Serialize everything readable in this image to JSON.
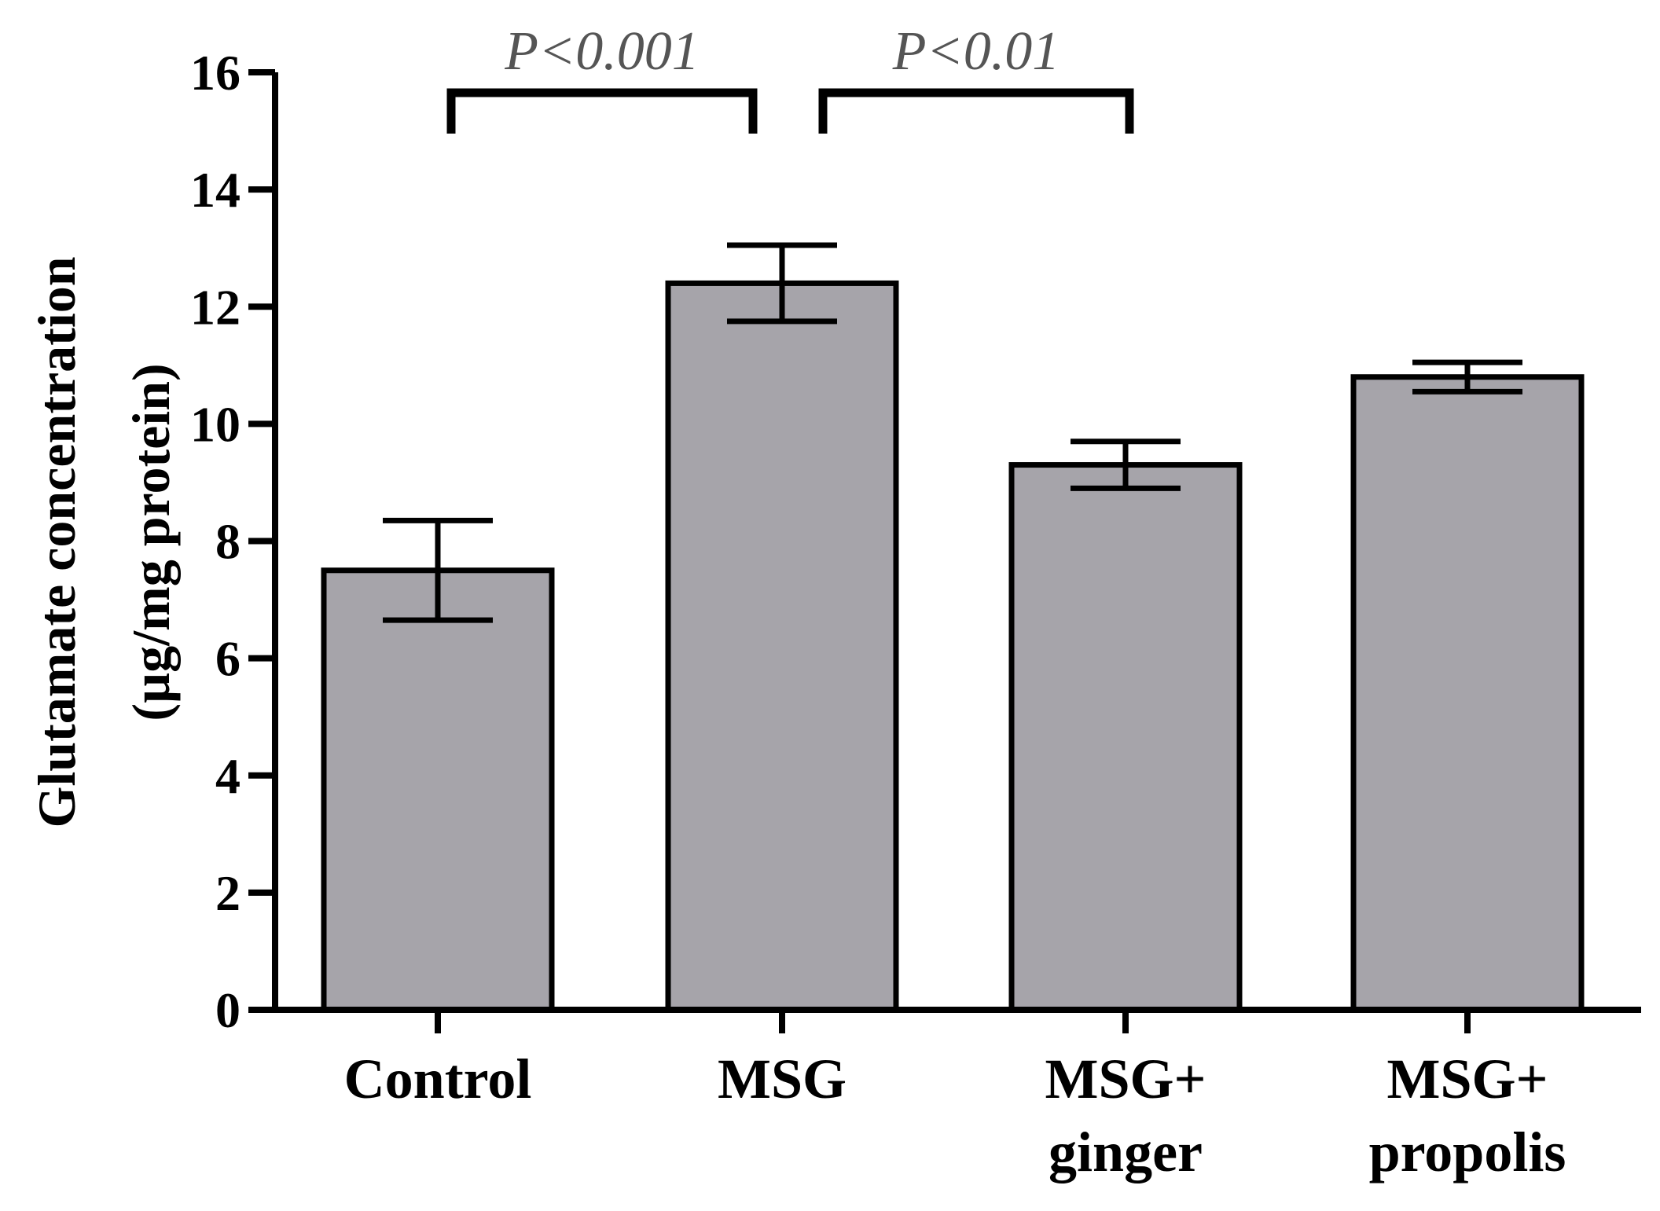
{
  "chart_data": {
    "type": "bar",
    "title": "",
    "xlabel": "",
    "ylabel_lines": [
      "Glutamate concentration",
      "(µg/mg protein)"
    ],
    "ylim": [
      0,
      16
    ],
    "yticks": [
      "0",
      "2",
      "4",
      "6",
      "8",
      "10",
      "12",
      "14",
      "16"
    ],
    "categories": [
      {
        "lines": [
          "Control"
        ]
      },
      {
        "lines": [
          "MSG"
        ]
      },
      {
        "lines": [
          "MSG+",
          "ginger"
        ]
      },
      {
        "lines": [
          "MSG+",
          "propolis"
        ]
      }
    ],
    "values": [
      7.5,
      12.4,
      9.3,
      10.8
    ],
    "errors": [
      0.85,
      0.65,
      0.4,
      0.25
    ],
    "bar_color": "#a6a4aa",
    "significance": [
      {
        "from": 0,
        "to": 1,
        "label": "P<0.001"
      },
      {
        "from": 1,
        "to": 2,
        "label": "P<0.01"
      }
    ]
  }
}
